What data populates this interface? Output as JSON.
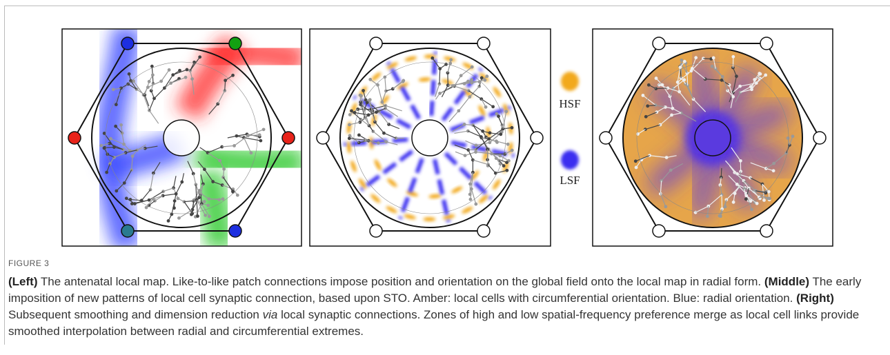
{
  "figure": {
    "legend": [
      {
        "label": "HSF",
        "color": "#f2a91f"
      },
      {
        "label": "LSF",
        "color": "#3b2df0"
      }
    ],
    "caption": {
      "label": "FIGURE 3",
      "sections": [
        {
          "label": "(Left)",
          "text": "The antenatal local map. Like-to-like patch connections impose position and orientation on the global field onto the local map in radial form."
        },
        {
          "label": "(Middle)",
          "text": "The early imposition of new patterns of local cell synaptic connection, based upon STO. Amber: local cells with circumferential orientation. Blue: radial orientation."
        },
        {
          "label": "(Right)",
          "text": "Subsequent smoothing and dimension reduction",
          "emphasis": "via",
          "text_after": "local synaptic connections. Zones of high and low spatial-frequency preference merge as local cell links provide smoothed interpolation between radial and circumferential extremes."
        }
      ]
    }
  }
}
